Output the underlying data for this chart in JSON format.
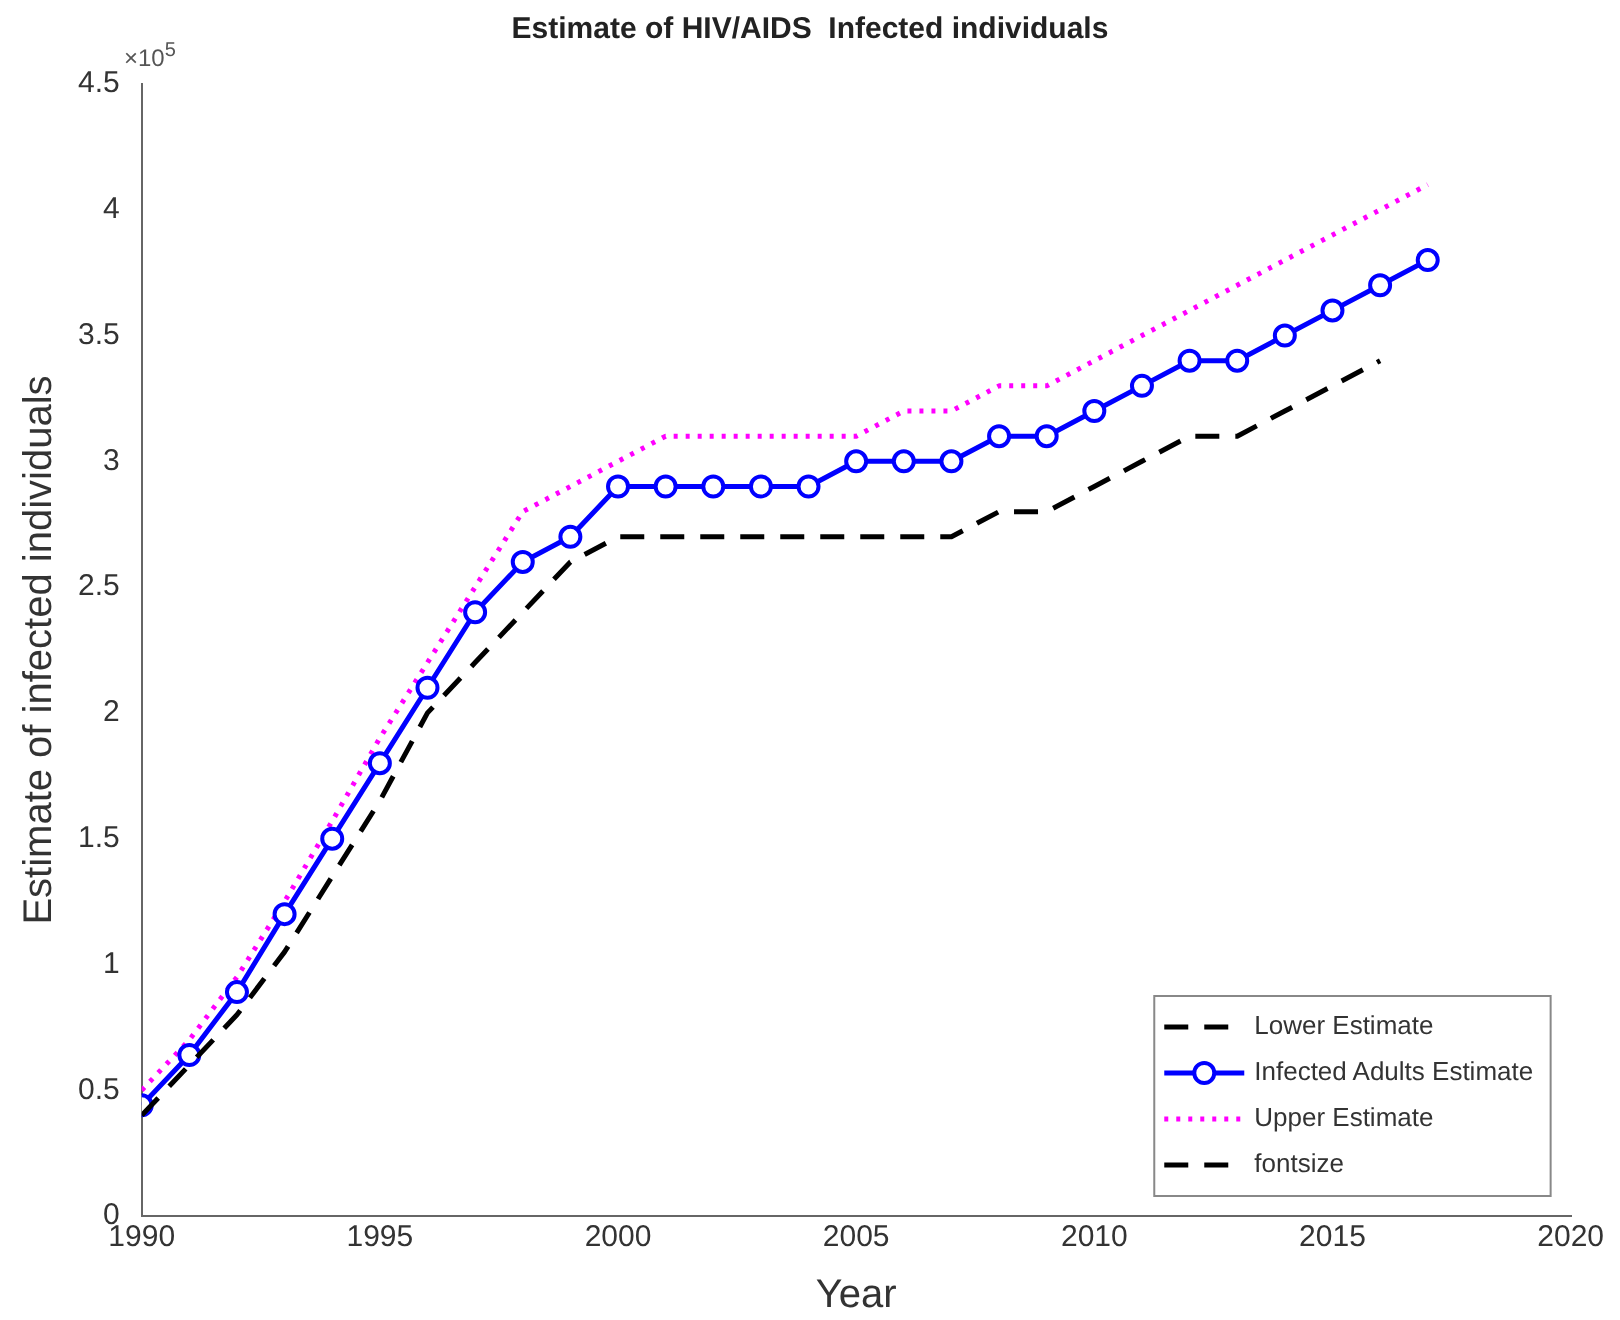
{
  "chart_data": {
    "type": "line",
    "title": "Estimate of HIV/AIDS  Infected individuals",
    "xlabel": "Year",
    "ylabel": "Estimate of infected individuals",
    "annotations": [
      "×10$^{5}$"
    ],
    "x": [
      1990,
      1991,
      1992,
      1993,
      1994,
      1995,
      1996,
      1997,
      1998,
      1999,
      2000,
      2001,
      2002,
      2003,
      2004,
      2005,
      2006,
      2007,
      2008,
      2009,
      2010,
      2011,
      2012,
      2013,
      2014,
      2015,
      2016,
      2017
    ],
    "series": [
      {
        "name": "Lower Estimate",
        "color": "#000000",
        "line_style": "dashed",
        "marker": "none",
        "values": [
          0.4,
          0.6,
          0.8,
          1.05,
          1.35,
          1.65,
          2.0,
          2.2,
          2.4,
          2.6,
          2.7,
          2.7,
          2.7,
          2.7,
          2.7,
          2.7,
          2.7,
          2.7,
          2.8,
          2.8,
          2.9,
          3.0,
          3.1,
          3.1,
          3.2,
          3.3,
          3.4,
          null
        ]
      },
      {
        "name": "Infected Adults Estimate",
        "color": "#0000ff",
        "line_style": "solid",
        "marker": "circle",
        "values": [
          0.44,
          0.64,
          0.89,
          1.2,
          1.5,
          1.8,
          2.1,
          2.4,
          2.6,
          2.7,
          2.9,
          2.9,
          2.9,
          2.9,
          2.9,
          3.0,
          3.0,
          3.0,
          3.1,
          3.1,
          3.2,
          3.3,
          3.4,
          3.4,
          3.5,
          3.6,
          3.7,
          3.8
        ]
      },
      {
        "name": "Upper Estimate",
        "color": "#ff00ff",
        "line_style": "dotted",
        "marker": "none",
        "values": [
          0.5,
          0.7,
          0.95,
          1.25,
          1.57,
          1.9,
          2.2,
          2.5,
          2.8,
          2.9,
          3.0,
          3.1,
          3.1,
          3.1,
          3.1,
          3.1,
          3.2,
          3.2,
          3.3,
          3.3,
          3.4,
          3.5,
          3.6,
          3.7,
          3.8,
          3.9,
          4.0,
          4.1
        ]
      },
      {
        "name": "fontsize",
        "color": "#000000",
        "line_style": "dashed",
        "marker": "none",
        "values": [
          null,
          null,
          null,
          null,
          null,
          null,
          null,
          null,
          null,
          null,
          null,
          null,
          null,
          null,
          null,
          null,
          null,
          null,
          null,
          null,
          null,
          null,
          null,
          null,
          null,
          null,
          null,
          null
        ]
      }
    ],
    "xlim": [
      1990,
      2020
    ],
    "xticks": [
      1990,
      1995,
      2000,
      2005,
      2010,
      2015,
      2020
    ],
    "ylim": [
      0,
      4.5
    ],
    "yticks": [
      0,
      0.5,
      1,
      1.5,
      2,
      2.5,
      3,
      3.5,
      4,
      4.5
    ],
    "grid": false,
    "legend": "bottom right"
  }
}
